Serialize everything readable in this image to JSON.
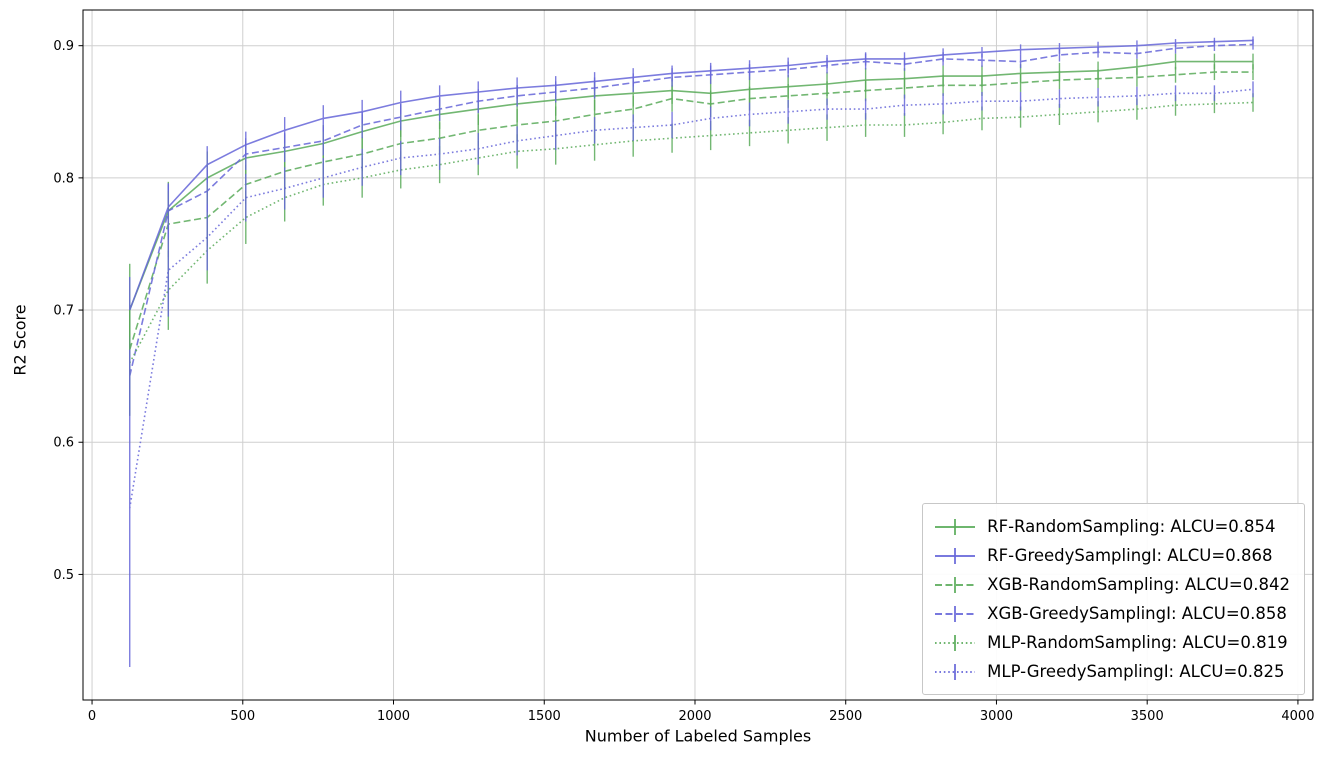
{
  "figure": {
    "background": "#ffffff"
  },
  "chart_data": {
    "type": "line",
    "title": "",
    "xlabel": "Number of Labeled Samples",
    "ylabel": "R2 Score",
    "xlim": [
      -30,
      4050
    ],
    "ylim": [
      0.405,
      0.927
    ],
    "xticks": [
      0,
      500,
      1000,
      1500,
      2000,
      2500,
      3000,
      3500,
      4000
    ],
    "yticks": [
      0.5,
      0.6,
      0.7,
      0.8,
      0.9
    ],
    "grid": true,
    "grid_color": "#cfcfcf",
    "legend_position": "lower right",
    "x": [
      125,
      253,
      382,
      510,
      639,
      767,
      896,
      1024,
      1153,
      1281,
      1410,
      1538,
      1667,
      1795,
      1924,
      2052,
      2181,
      2309,
      2438,
      2566,
      2695,
      2823,
      2952,
      3080,
      3209,
      3337,
      3466,
      3594,
      3723,
      3851
    ],
    "series": [
      {
        "name": "RF-RandomSampling: ALCU=0.854",
        "color": "#5aab5a",
        "style": "solid",
        "values": [
          0.7,
          0.775,
          0.8,
          0.815,
          0.82,
          0.826,
          0.835,
          0.843,
          0.848,
          0.852,
          0.856,
          0.859,
          0.862,
          0.864,
          0.866,
          0.864,
          0.867,
          0.869,
          0.871,
          0.874,
          0.875,
          0.877,
          0.877,
          0.879,
          0.88,
          0.881,
          0.884,
          0.888,
          0.888,
          0.888
        ],
        "err": [
          0.035,
          0.022,
          0.02,
          0.013,
          0.013,
          0.014,
          0.013,
          0.012,
          0.011,
          0.012,
          0.014,
          0.012,
          0.011,
          0.01,
          0.01,
          0.011,
          0.01,
          0.009,
          0.009,
          0.009,
          0.008,
          0.008,
          0.008,
          0.007,
          0.007,
          0.007,
          0.006,
          0.006,
          0.006,
          0.006
        ]
      },
      {
        "name": "RF-GreedySamplingI: ALCU=0.868",
        "color": "#6666d9",
        "style": "solid",
        "values": [
          0.7,
          0.778,
          0.81,
          0.825,
          0.836,
          0.845,
          0.85,
          0.857,
          0.862,
          0.865,
          0.868,
          0.87,
          0.873,
          0.876,
          0.879,
          0.881,
          0.883,
          0.885,
          0.888,
          0.89,
          0.89,
          0.893,
          0.895,
          0.897,
          0.898,
          0.899,
          0.9,
          0.902,
          0.903,
          0.904
        ],
        "err": [
          0.025,
          0.018,
          0.014,
          0.01,
          0.01,
          0.01,
          0.009,
          0.009,
          0.008,
          0.008,
          0.008,
          0.007,
          0.007,
          0.007,
          0.006,
          0.006,
          0.006,
          0.006,
          0.005,
          0.005,
          0.005,
          0.005,
          0.004,
          0.004,
          0.004,
          0.004,
          0.004,
          0.003,
          0.003,
          0.003
        ]
      },
      {
        "name": "XGB-RandomSampling: ALCU=0.842",
        "color": "#5aab5a",
        "style": "dashed",
        "values": [
          0.67,
          0.765,
          0.77,
          0.795,
          0.805,
          0.812,
          0.818,
          0.826,
          0.83,
          0.836,
          0.84,
          0.843,
          0.848,
          0.852,
          0.86,
          0.856,
          0.86,
          0.862,
          0.864,
          0.866,
          0.868,
          0.87,
          0.87,
          0.872,
          0.874,
          0.875,
          0.876,
          0.878,
          0.88,
          0.88
        ],
        "err": [
          0.03,
          0.025,
          0.022,
          0.015,
          0.014,
          0.014,
          0.013,
          0.013,
          0.012,
          0.012,
          0.012,
          0.011,
          0.011,
          0.01,
          0.01,
          0.01,
          0.009,
          0.009,
          0.009,
          0.008,
          0.008,
          0.008,
          0.008,
          0.007,
          0.007,
          0.007,
          0.007,
          0.006,
          0.006,
          0.006
        ]
      },
      {
        "name": "XGB-GreedySamplingI: ALCU=0.858",
        "color": "#6666d9",
        "style": "dashed",
        "values": [
          0.65,
          0.775,
          0.79,
          0.818,
          0.823,
          0.828,
          0.84,
          0.846,
          0.852,
          0.858,
          0.862,
          0.865,
          0.868,
          0.872,
          0.876,
          0.878,
          0.88,
          0.882,
          0.885,
          0.888,
          0.886,
          0.89,
          0.889,
          0.888,
          0.893,
          0.895,
          0.894,
          0.898,
          0.9,
          0.901
        ],
        "err": [
          0.03,
          0.02,
          0.016,
          0.012,
          0.011,
          0.011,
          0.01,
          0.01,
          0.009,
          0.009,
          0.008,
          0.008,
          0.008,
          0.007,
          0.007,
          0.007,
          0.006,
          0.006,
          0.006,
          0.006,
          0.005,
          0.005,
          0.005,
          0.005,
          0.005,
          0.004,
          0.004,
          0.004,
          0.004,
          0.004
        ]
      },
      {
        "name": "MLP-RandomSampling: ALCU=0.819",
        "color": "#5aab5a",
        "style": "dotted",
        "values": [
          0.66,
          0.715,
          0.745,
          0.77,
          0.785,
          0.795,
          0.8,
          0.806,
          0.81,
          0.815,
          0.82,
          0.822,
          0.825,
          0.828,
          0.83,
          0.832,
          0.834,
          0.836,
          0.838,
          0.84,
          0.84,
          0.842,
          0.845,
          0.846,
          0.848,
          0.85,
          0.852,
          0.855,
          0.856,
          0.857
        ],
        "err": [
          0.04,
          0.03,
          0.025,
          0.02,
          0.018,
          0.016,
          0.015,
          0.014,
          0.014,
          0.013,
          0.013,
          0.012,
          0.012,
          0.012,
          0.011,
          0.011,
          0.01,
          0.01,
          0.01,
          0.009,
          0.009,
          0.009,
          0.009,
          0.008,
          0.008,
          0.008,
          0.008,
          0.008,
          0.007,
          0.007
        ]
      },
      {
        "name": "MLP-GreedySamplingI: ALCU=0.825",
        "color": "#6666d9",
        "style": "dotted",
        "values": [
          0.55,
          0.73,
          0.755,
          0.785,
          0.792,
          0.8,
          0.808,
          0.815,
          0.818,
          0.822,
          0.828,
          0.832,
          0.836,
          0.838,
          0.84,
          0.845,
          0.848,
          0.85,
          0.852,
          0.852,
          0.855,
          0.856,
          0.858,
          0.858,
          0.86,
          0.861,
          0.862,
          0.864,
          0.864,
          0.867
        ],
        "err": [
          0.12,
          0.035,
          0.025,
          0.018,
          0.016,
          0.015,
          0.014,
          0.013,
          0.012,
          0.012,
          0.011,
          0.011,
          0.01,
          0.01,
          0.01,
          0.009,
          0.009,
          0.009,
          0.008,
          0.008,
          0.008,
          0.008,
          0.007,
          0.007,
          0.007,
          0.007,
          0.007,
          0.006,
          0.006,
          0.006
        ]
      }
    ]
  }
}
